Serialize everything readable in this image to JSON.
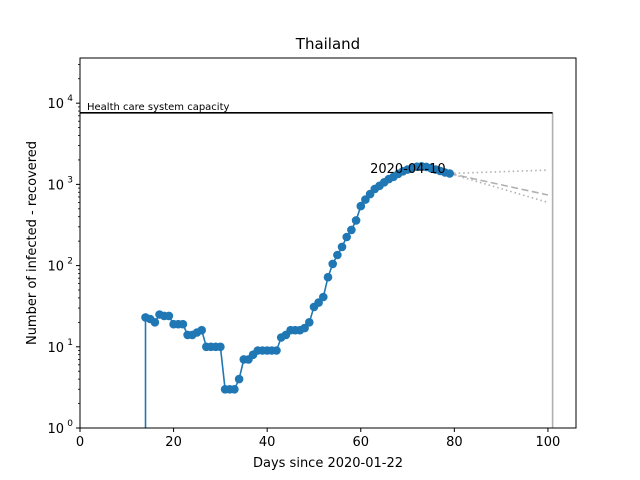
{
  "chart_data": {
    "type": "line",
    "title": "Thailand",
    "xlabel": "Days since 2020-01-22",
    "ylabel": "Number of infected - recovered",
    "xlim": [
      0,
      106
    ],
    "ylim": [
      1,
      36000
    ],
    "yscale": "log",
    "grid": false,
    "x_ticks": [
      0,
      20,
      40,
      60,
      80,
      100
    ],
    "y_ticks": [
      {
        "value": 1,
        "base": "10",
        "exp": "0"
      },
      {
        "value": 10,
        "base": "10",
        "exp": "1"
      },
      {
        "value": 100,
        "base": "10",
        "exp": "2"
      },
      {
        "value": 1000,
        "base": "10",
        "exp": "3"
      },
      {
        "value": 10000,
        "base": "10",
        "exp": "4"
      }
    ],
    "capacity": {
      "label": "Health care system capacity",
      "value": 7600,
      "x_start": 0,
      "x_end": 101,
      "color": "#000000"
    },
    "annotation": {
      "text": "2020-04-10",
      "x": 62,
      "y": 1600
    },
    "colors": {
      "series": "#1f77b4",
      "projection": "#b0b0b0",
      "frame": "#000000"
    },
    "series": [
      {
        "x": [
          14,
          15,
          16,
          17,
          18,
          19,
          20,
          21,
          22,
          23,
          24,
          25,
          26,
          27,
          28,
          29,
          30,
          31,
          32,
          33,
          34,
          35,
          36,
          37,
          38,
          39,
          40,
          41,
          42,
          43,
          44,
          45,
          46,
          47,
          48,
          49,
          50,
          51,
          52,
          53,
          54,
          55,
          56,
          57,
          58,
          59,
          60,
          61,
          62,
          63,
          64,
          65,
          66,
          67,
          68,
          69,
          70,
          71,
          72,
          73,
          74,
          75,
          76,
          77,
          78,
          79
        ],
        "y": [
          23,
          22,
          20,
          25,
          24,
          24,
          19,
          19,
          19,
          14,
          14,
          15,
          16,
          10,
          10,
          10,
          10,
          3,
          3,
          3,
          4,
          7,
          7,
          8,
          9,
          9,
          9,
          9,
          9,
          13,
          14,
          16,
          16,
          16,
          17,
          20,
          31,
          35,
          41,
          72,
          105,
          135,
          170,
          225,
          275,
          360,
          540,
          650,
          760,
          880,
          960,
          1060,
          1160,
          1240,
          1350,
          1450,
          1520,
          1600,
          1650,
          1670,
          1640,
          1580,
          1520,
          1460,
          1400,
          1360
        ]
      }
    ],
    "projections": [
      {
        "style": "dotted",
        "x": [
          79,
          100
        ],
        "y": [
          1360,
          1500
        ]
      },
      {
        "style": "dashed",
        "x": [
          79,
          100
        ],
        "y": [
          1360,
          740
        ]
      },
      {
        "style": "dotted",
        "x": [
          79,
          100
        ],
        "y": [
          1360,
          600
        ]
      }
    ],
    "drops": [
      {
        "x": 14,
        "y_from": 23,
        "y_to": 1,
        "color": "#1f77b4"
      },
      {
        "x": 101,
        "y_from": 7600,
        "y_to": 1,
        "color": "#b0b0b0"
      }
    ]
  }
}
